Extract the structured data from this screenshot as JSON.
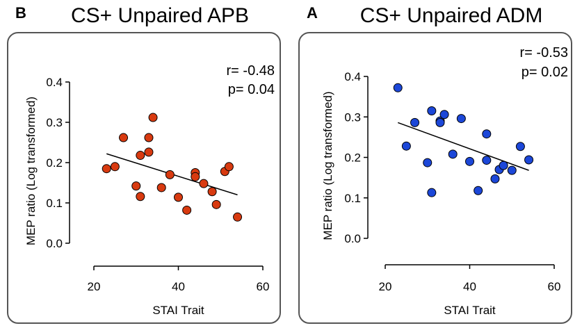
{
  "chart_data": [
    {
      "type": "scatter",
      "panel_letter": "B",
      "title": "CS+ Unpaired APB",
      "xlabel": "STAI Trait",
      "ylabel": "MEP ratio (Log transformed)",
      "xlim": [
        20,
        60
      ],
      "ylim": [
        0.0,
        0.4
      ],
      "xticks": [
        "20",
        "40",
        "60"
      ],
      "yticks": [
        "0.0",
        "0.1",
        "0.2",
        "0.3",
        "0.4"
      ],
      "stats": {
        "r": "r= -0.48",
        "p": "p= 0.04"
      },
      "point_color": "#d83a10",
      "points": [
        {
          "x": 23,
          "y": 0.185
        },
        {
          "x": 25,
          "y": 0.19
        },
        {
          "x": 27,
          "y": 0.262
        },
        {
          "x": 30,
          "y": 0.142
        },
        {
          "x": 31,
          "y": 0.218
        },
        {
          "x": 31,
          "y": 0.116
        },
        {
          "x": 33,
          "y": 0.262
        },
        {
          "x": 33,
          "y": 0.226
        },
        {
          "x": 34,
          "y": 0.312
        },
        {
          "x": 36,
          "y": 0.138
        },
        {
          "x": 38,
          "y": 0.17
        },
        {
          "x": 40,
          "y": 0.114
        },
        {
          "x": 42,
          "y": 0.082
        },
        {
          "x": 44,
          "y": 0.175
        },
        {
          "x": 44,
          "y": 0.165
        },
        {
          "x": 46,
          "y": 0.148
        },
        {
          "x": 48,
          "y": 0.128
        },
        {
          "x": 49,
          "y": 0.096
        },
        {
          "x": 51,
          "y": 0.178
        },
        {
          "x": 52,
          "y": 0.19
        },
        {
          "x": 54,
          "y": 0.065
        }
      ],
      "fit_line": {
        "x1": 23,
        "y1": 0.222,
        "x2": 54,
        "y2": 0.12
      }
    },
    {
      "type": "scatter",
      "panel_letter": "A",
      "title": "CS+ Unpaired ADM",
      "xlabel": "STAI Trait",
      "ylabel": "MEP ratio (Log transformed)",
      "xlim": [
        20,
        60
      ],
      "ylim": [
        0.0,
        0.4
      ],
      "xticks": [
        "20",
        "40",
        "60"
      ],
      "yticks": [
        "0.0",
        "0.1",
        "0.2",
        "0.3",
        "0.4"
      ],
      "stats": {
        "r": "r= -0.53",
        "p": "p= 0.02"
      },
      "point_color": "#1c47d8",
      "points": [
        {
          "x": 23,
          "y": 0.372
        },
        {
          "x": 25,
          "y": 0.228
        },
        {
          "x": 27,
          "y": 0.286
        },
        {
          "x": 30,
          "y": 0.187
        },
        {
          "x": 31,
          "y": 0.315
        },
        {
          "x": 31,
          "y": 0.113
        },
        {
          "x": 33,
          "y": 0.29
        },
        {
          "x": 33,
          "y": 0.286
        },
        {
          "x": 34,
          "y": 0.306
        },
        {
          "x": 36,
          "y": 0.208
        },
        {
          "x": 38,
          "y": 0.296
        },
        {
          "x": 40,
          "y": 0.19
        },
        {
          "x": 42,
          "y": 0.118
        },
        {
          "x": 44,
          "y": 0.258
        },
        {
          "x": 44,
          "y": 0.193
        },
        {
          "x": 46,
          "y": 0.147
        },
        {
          "x": 47,
          "y": 0.17
        },
        {
          "x": 48,
          "y": 0.18
        },
        {
          "x": 50,
          "y": 0.168
        },
        {
          "x": 52,
          "y": 0.227
        },
        {
          "x": 54,
          "y": 0.194
        }
      ],
      "fit_line": {
        "x1": 23,
        "y1": 0.286,
        "x2": 54,
        "y2": 0.168
      }
    }
  ]
}
